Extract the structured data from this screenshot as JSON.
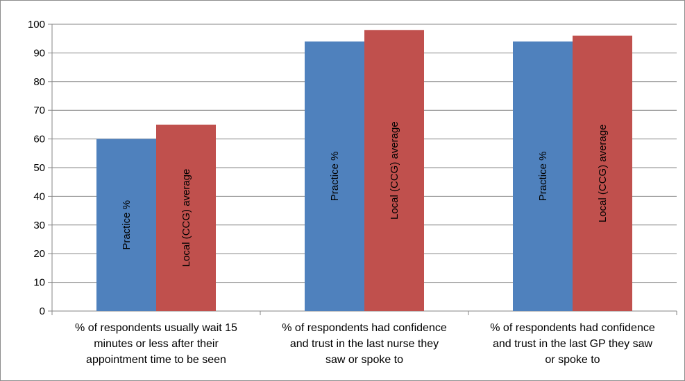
{
  "chart_data": {
    "type": "bar",
    "title": "",
    "xlabel": "",
    "ylabel": "",
    "ylim": [
      0,
      100
    ],
    "ytick_step": 10,
    "grid": true,
    "categories": [
      [
        "% of respondents usually wait 15",
        "minutes or less after their",
        "appointment time to be seen"
      ],
      [
        "% of respondents had confidence",
        "and trust in the last nurse they",
        "saw or spoke to"
      ],
      [
        "% of respondents had confidence",
        "and trust in the last GP they saw",
        "or spoke to"
      ]
    ],
    "series": [
      {
        "name": "Practice %",
        "color": "#4f81bd",
        "values": [
          60,
          94,
          94
        ]
      },
      {
        "name": "Local (CCG) average",
        "color": "#c0504d",
        "values": [
          65,
          98,
          96
        ]
      }
    ]
  }
}
